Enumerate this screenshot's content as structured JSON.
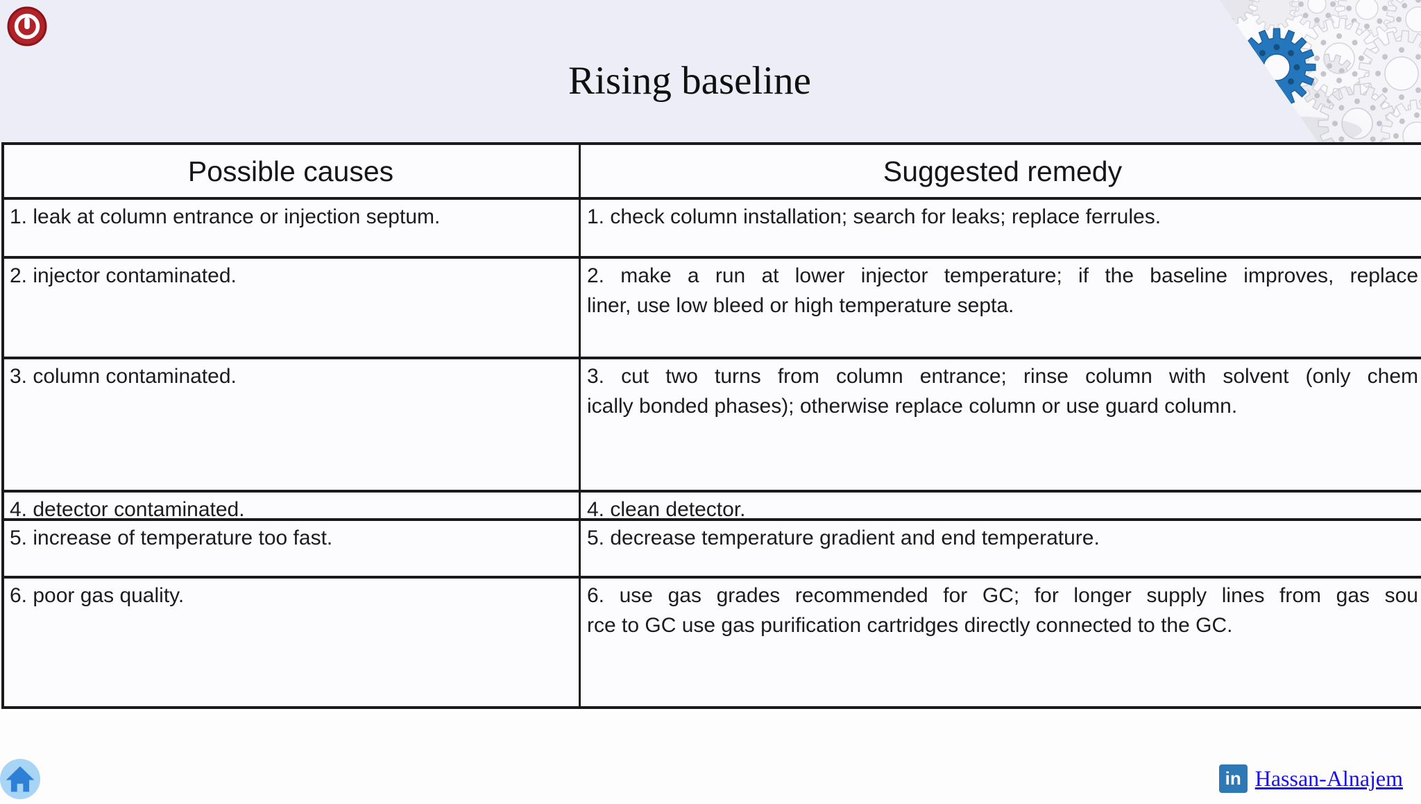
{
  "slide": {
    "title": "Rising baseline",
    "background_top": "#EDEDF7",
    "background_bottom": "#FDFDFE"
  },
  "table": {
    "headers": [
      {
        "label": "Possible causes"
      },
      {
        "label": "Suggested remedy"
      }
    ],
    "rows": [
      {
        "cause": "1. leak at column entrance or injection septum.",
        "remedy_lines": [
          "1. check column installation; search for leaks; replace ferrules."
        ]
      },
      {
        "cause": "2. injector contaminated.",
        "remedy_lines": [
          "2. make a run at lower injector temperature; if the baseline improves, replace",
          "liner, use low bleed or high temperature septa."
        ]
      },
      {
        "cause": "3. column contaminated.",
        "remedy_lines": [
          "3. cut two turns from column entrance; rinse column with solvent (only chem",
          "ically bonded phases); otherwise replace column or use guard column."
        ]
      },
      {
        "cause": "4. detector contaminated.",
        "remedy_lines": [
          "4. clean detector."
        ]
      },
      {
        "cause": "5. increase of temperature too fast.",
        "remedy_lines": [
          "5. decrease temperature gradient and end temperature."
        ]
      },
      {
        "cause": "6. poor gas quality.",
        "remedy_lines": [
          "6. use gas grades recommended for GC; for longer supply lines from gas sou",
          "rce to GC use gas purification cartridges directly connected to the GC."
        ]
      }
    ]
  },
  "footer": {
    "linkedin_badge_text": "in",
    "linkedin_label": "Hassan-Alnajem",
    "linkedin_color": "#2E79B5",
    "link_color": "#1A12E8"
  },
  "icons": {
    "top_left": "power-stop-icon",
    "top_right": "gears-decoration",
    "bottom_left": "home-icon",
    "bottom_right": "linkedin-icon"
  }
}
